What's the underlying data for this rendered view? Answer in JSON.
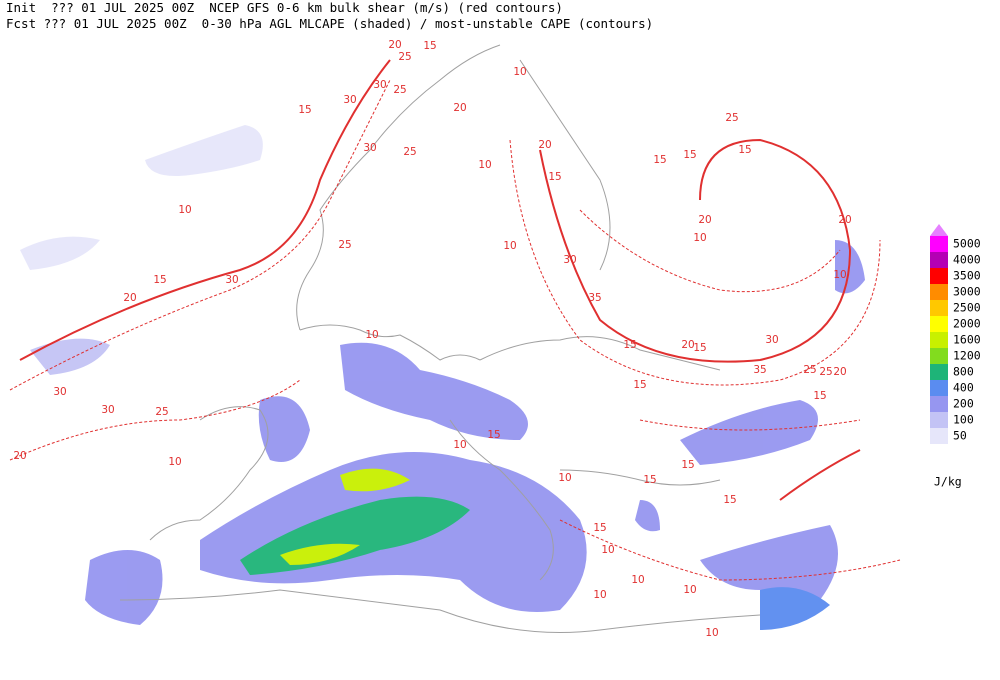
{
  "header": {
    "line1": "Init  ??? 01 JUL 2025 00Z  NCEP GFS 0-6 km bulk shear (m/s) (red contours)",
    "line2": "Fcst ??? 01 JUL 2025 00Z  0-30 hPa AGL MLCAPE (shaded) / most-unstable CAPE (contours)"
  },
  "legend": {
    "unit": "J/kg",
    "levels": [
      50,
      100,
      200,
      400,
      800,
      1200,
      1600,
      2000,
      2500,
      3000,
      3500,
      4000,
      5000
    ],
    "colors": [
      "#e6e6fa",
      "#c3c3f5",
      "#9696f0",
      "#5a8cf0",
      "#1eb478",
      "#82dc1e",
      "#c8f000",
      "#ffff00",
      "#ffc800",
      "#ff8c00",
      "#ff0000",
      "#b400b4",
      "#ff00ff"
    ]
  },
  "contour_labels": [
    20,
    15,
    25,
    10,
    30,
    25,
    30,
    20,
    15,
    30,
    25,
    10,
    10,
    25,
    30,
    15,
    20,
    20,
    30,
    25,
    30,
    10,
    10,
    20,
    15,
    25,
    15,
    15,
    30,
    35,
    15,
    20,
    15,
    10,
    10,
    15,
    20,
    20,
    15,
    25,
    30,
    35,
    25,
    20,
    15,
    15,
    10,
    10,
    15,
    10,
    10,
    15,
    15,
    10,
    10,
    15,
    10,
    10
  ]
}
